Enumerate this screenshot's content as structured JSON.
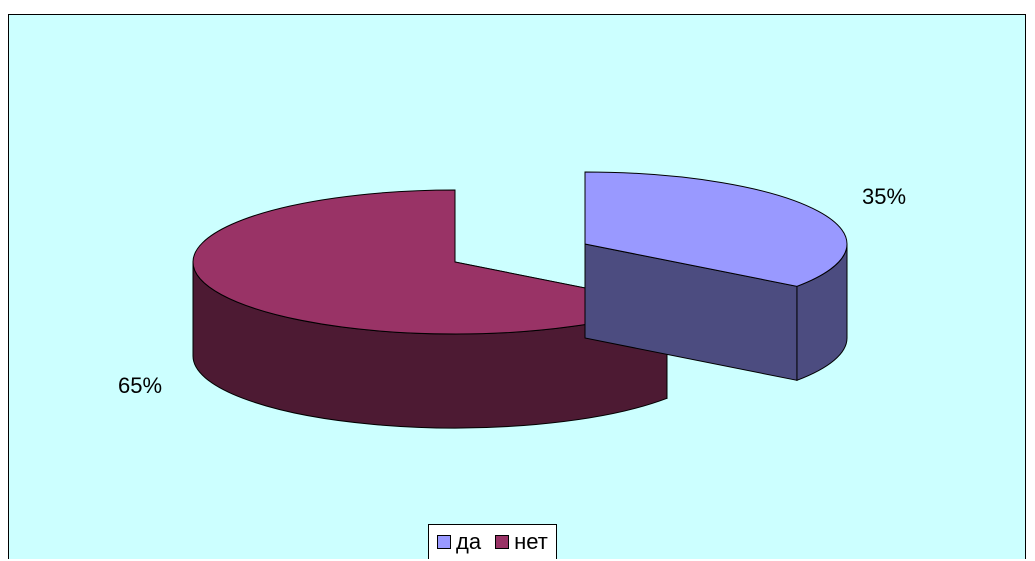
{
  "chart_data": {
    "type": "pie",
    "title": "",
    "three_d": true,
    "exploded": true,
    "slices": [
      {
        "label": "да",
        "value": 35,
        "display": "35%",
        "color": "#9999ff",
        "side_color": "#4c4c80"
      },
      {
        "label": "нет",
        "value": 65,
        "display": "65%",
        "color": "#993366",
        "side_color": "#4d1a33"
      }
    ],
    "legend": {
      "position": "bottom",
      "entries": [
        "да",
        "нет"
      ]
    },
    "background_color": "#ccffff"
  }
}
